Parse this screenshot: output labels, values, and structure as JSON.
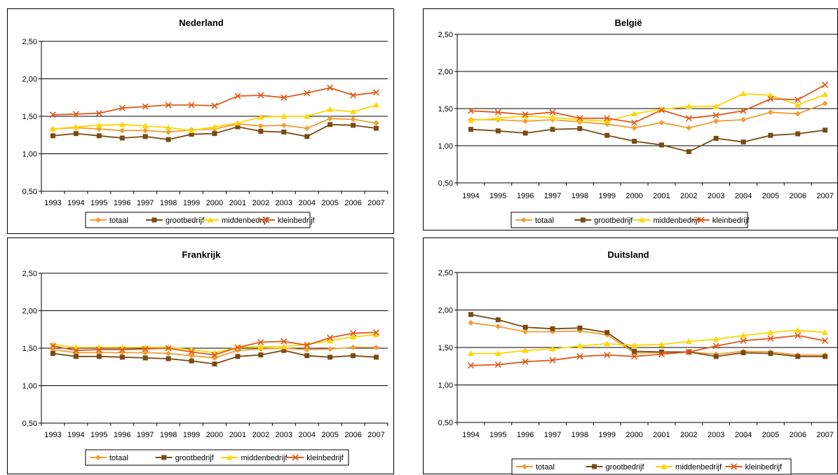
{
  "chart_data": [
    {
      "type": "line",
      "title": "Nederland",
      "x": [
        "1993",
        "1994",
        "1995",
        "1996",
        "1997",
        "1998",
        "1999",
        "2000",
        "2001",
        "2002",
        "2003",
        "2004",
        "2005",
        "2006",
        "2007"
      ],
      "ylim": [
        0.5,
        2.5
      ],
      "yticks": [
        "0,50",
        "1,00",
        "1,50",
        "2,00",
        "2,50"
      ],
      "grid": true,
      "legend": "bottom",
      "series": [
        {
          "name": "totaal",
          "color": "#F39C34",
          "marker": "diamond",
          "values": [
            1.33,
            1.35,
            1.33,
            1.31,
            1.31,
            1.29,
            1.32,
            1.33,
            1.4,
            1.37,
            1.38,
            1.34,
            1.47,
            1.46,
            1.41
          ]
        },
        {
          "name": "grootbedrijf",
          "color": "#7A4A12",
          "marker": "square",
          "values": [
            1.24,
            1.27,
            1.24,
            1.21,
            1.23,
            1.19,
            1.26,
            1.27,
            1.36,
            1.3,
            1.29,
            1.23,
            1.39,
            1.38,
            1.34
          ]
        },
        {
          "name": "middenbedrijf",
          "color": "#FFD600",
          "marker": "triangle",
          "values": [
            1.33,
            1.36,
            1.38,
            1.39,
            1.37,
            1.35,
            1.31,
            1.36,
            1.41,
            1.49,
            1.5,
            1.5,
            1.59,
            1.56,
            1.65
          ]
        },
        {
          "name": "kleinbedrijf",
          "color": "#E05A1A",
          "marker": "x",
          "values": [
            1.52,
            1.53,
            1.54,
            1.61,
            1.63,
            1.65,
            1.65,
            1.64,
            1.77,
            1.78,
            1.75,
            1.81,
            1.88,
            1.78,
            1.82
          ]
        }
      ]
    },
    {
      "type": "line",
      "title": "België",
      "x": [
        "1994",
        "1995",
        "1996",
        "1997",
        "1998",
        "1999",
        "2000",
        "2001",
        "2002",
        "2003",
        "2004",
        "2005",
        "2006",
        "2007"
      ],
      "ylim": [
        0.5,
        2.5
      ],
      "yticks": [
        "0,50",
        "1,00",
        "1,50",
        "2,00",
        "2,50"
      ],
      "grid": true,
      "legend": "bottom",
      "series": [
        {
          "name": "totaal",
          "color": "#F39C34",
          "marker": "diamond",
          "values": [
            1.35,
            1.35,
            1.33,
            1.35,
            1.32,
            1.29,
            1.24,
            1.31,
            1.24,
            1.33,
            1.35,
            1.45,
            1.43,
            1.57
          ]
        },
        {
          "name": "grootbedrijf",
          "color": "#7A4A12",
          "marker": "square",
          "values": [
            1.22,
            1.2,
            1.17,
            1.22,
            1.23,
            1.14,
            1.06,
            1.01,
            0.92,
            1.1,
            1.05,
            1.14,
            1.16,
            1.21
          ]
        },
        {
          "name": "middenbedrijf",
          "color": "#FFD600",
          "marker": "triangle",
          "values": [
            1.34,
            1.37,
            1.4,
            1.38,
            1.35,
            1.33,
            1.43,
            1.49,
            1.53,
            1.53,
            1.7,
            1.68,
            1.55,
            1.69
          ]
        },
        {
          "name": "kleinbedrijf",
          "color": "#E05A1A",
          "marker": "x",
          "values": [
            1.47,
            1.45,
            1.42,
            1.45,
            1.37,
            1.37,
            1.31,
            1.48,
            1.37,
            1.41,
            1.47,
            1.63,
            1.62,
            1.82
          ]
        }
      ]
    },
    {
      "type": "line",
      "title": "Frankrijk",
      "x": [
        "1993",
        "1994",
        "1995",
        "1996",
        "1997",
        "1998",
        "1999",
        "2000",
        "2001",
        "2002",
        "2003",
        "2004",
        "2005",
        "2006",
        "2007"
      ],
      "ylim": [
        0.5,
        2.5
      ],
      "yticks": [
        "0,50",
        "1,00",
        "1,50",
        "2,00",
        "2,50"
      ],
      "grid": true,
      "legend": "bottom",
      "series": [
        {
          "name": "totaal",
          "color": "#F39C34",
          "marker": "diamond",
          "values": [
            1.48,
            1.44,
            1.44,
            1.44,
            1.44,
            1.43,
            1.4,
            1.37,
            1.47,
            1.49,
            1.5,
            1.48,
            1.49,
            1.51,
            1.51
          ]
        },
        {
          "name": "grootbedrijf",
          "color": "#7A4A12",
          "marker": "square",
          "values": [
            1.43,
            1.39,
            1.39,
            1.38,
            1.37,
            1.36,
            1.33,
            1.29,
            1.39,
            1.41,
            1.47,
            1.4,
            1.38,
            1.4,
            1.38
          ]
        },
        {
          "name": "middenbedrijf",
          "color": "#FFD600",
          "marker": "triangle",
          "values": [
            1.55,
            1.51,
            1.51,
            1.51,
            1.51,
            1.51,
            1.48,
            1.44,
            1.51,
            1.52,
            1.52,
            1.55,
            1.6,
            1.65,
            1.68
          ]
        },
        {
          "name": "kleinbedrijf",
          "color": "#E05A1A",
          "marker": "x",
          "values": [
            1.53,
            1.47,
            1.48,
            1.48,
            1.49,
            1.5,
            1.45,
            1.41,
            1.51,
            1.58,
            1.59,
            1.54,
            1.64,
            1.7,
            1.71
          ]
        }
      ]
    },
    {
      "type": "line",
      "title": "Duitsland",
      "x": [
        "1994",
        "1995",
        "1996",
        "1997",
        "1998",
        "1999",
        "2000",
        "2001",
        "2002",
        "2003",
        "2004",
        "2005",
        "2006",
        "2007"
      ],
      "ylim": [
        0.5,
        2.5
      ],
      "yticks": [
        "0,50",
        "1,00",
        "1,50",
        "2,00",
        "2,50"
      ],
      "grid": true,
      "legend": "bottom",
      "series": [
        {
          "name": "totaal",
          "color": "#F39C34",
          "marker": "diamond",
          "values": [
            1.83,
            1.78,
            1.71,
            1.71,
            1.72,
            1.67,
            1.43,
            1.43,
            1.44,
            1.41,
            1.45,
            1.44,
            1.4,
            1.4
          ]
        },
        {
          "name": "grootbedrijf",
          "color": "#7A4A12",
          "marker": "square",
          "values": [
            1.94,
            1.87,
            1.77,
            1.75,
            1.76,
            1.7,
            1.45,
            1.44,
            1.44,
            1.38,
            1.43,
            1.42,
            1.38,
            1.38
          ]
        },
        {
          "name": "middenbedrijf",
          "color": "#FFD600",
          "marker": "triangle",
          "values": [
            1.42,
            1.42,
            1.46,
            1.48,
            1.52,
            1.55,
            1.53,
            1.54,
            1.58,
            1.61,
            1.66,
            1.7,
            1.73,
            1.7
          ]
        },
        {
          "name": "kleinbedrijf",
          "color": "#E05A1A",
          "marker": "x",
          "values": [
            1.26,
            1.27,
            1.31,
            1.33,
            1.38,
            1.4,
            1.38,
            1.41,
            1.44,
            1.52,
            1.59,
            1.62,
            1.66,
            1.59
          ]
        }
      ]
    }
  ]
}
